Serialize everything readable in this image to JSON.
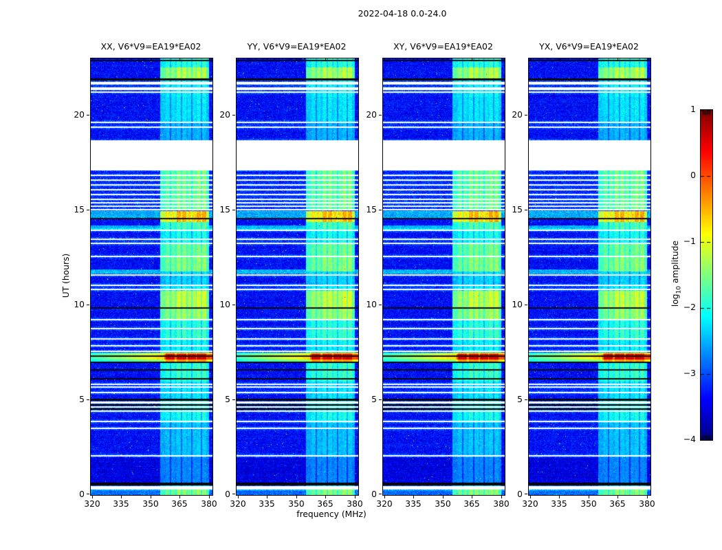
{
  "title": "2022-04-18 0.0-24.0",
  "panels": [
    {
      "id": "XX",
      "title": "XX, V6*V9=EA19*EA02"
    },
    {
      "id": "YY",
      "title": "YY, V6*V9=EA19*EA02"
    },
    {
      "id": "XY",
      "title": "XY, V6*V9=EA19*EA02"
    },
    {
      "id": "YX",
      "title": "YX, V6*V9=EA19*EA02"
    }
  ],
  "axes": {
    "x_label": "frequency (MHz)",
    "y_label": "UT (hours)",
    "x_tick_labels": [
      "320",
      "335",
      "350",
      "365",
      "380"
    ],
    "x_tick_values": [
      320,
      335,
      350,
      365,
      380
    ],
    "y_tick_labels": [
      "0",
      "5",
      "10",
      "15",
      "20"
    ],
    "y_tick_values": [
      0,
      5,
      10,
      15,
      20
    ]
  },
  "colorbar": {
    "label_pre": "log",
    "label_sub": "10",
    "label_post": " amplitude",
    "tick_labels": [
      "1",
      "0",
      "−1",
      "−2",
      "−3",
      "−4"
    ],
    "tick_values": [
      1,
      0,
      -1,
      -2,
      -3,
      -4
    ],
    "min": -4,
    "max": 1,
    "colormap": "jet"
  },
  "chart_data": {
    "type": "heatmap",
    "title": "2022-04-18 0.0-24.0",
    "subplot_titles": [
      "XX, V6*V9=EA19*EA02",
      "YY, V6*V9=EA19*EA02",
      "XY, V6*V9=EA19*EA02",
      "YX, V6*V9=EA19*EA02"
    ],
    "xlabel": "frequency (MHz)",
    "ylabel": "UT (hours)",
    "x_range_mhz": [
      319.0,
      381.4
    ],
    "y_range_hours": [
      0,
      23
    ],
    "value_range_log10": [
      -4,
      1
    ],
    "background_level": -3.35,
    "noise_amplitude": 0.7,
    "rfi_bands_mhz": [
      [
        357.4,
        361.9
      ],
      [
        363.0,
        367.8
      ],
      [
        368.6,
        372.8
      ],
      [
        373.2,
        378.0
      ]
    ],
    "rfi_band_gain": [
      0.88,
      1.0,
      0.93,
      1.02
    ],
    "rfi_halo_mhz": [
      354.5,
      379.6
    ],
    "notch_freqs_mhz": [
      359.7,
      365.5,
      370.6,
      375.5
    ],
    "burst_band": {
      "hours": [
        7.03,
        7.5
      ],
      "peak_level": 0.7,
      "note": "broadband burst: green-yellow at low freq, dark red blocks in RFI bands"
    },
    "white_gaps_hours": [
      [
        21.63,
        21.77
      ],
      [
        21.34,
        21.48
      ],
      [
        21.2,
        21.27
      ],
      [
        19.6,
        19.67
      ],
      [
        19.34,
        19.42
      ],
      [
        17.1,
        18.69
      ],
      [
        16.81,
        16.88
      ],
      [
        16.55,
        16.63
      ],
      [
        16.3,
        16.37
      ],
      [
        16.05,
        16.12
      ],
      [
        15.79,
        15.87
      ],
      [
        15.54,
        15.61
      ],
      [
        15.36,
        15.43
      ],
      [
        15.18,
        15.25
      ],
      [
        15.0,
        15.07
      ],
      [
        13.91,
        13.98
      ],
      [
        13.44,
        13.51
      ],
      [
        13.22,
        13.3
      ],
      [
        12.53,
        12.61
      ],
      [
        11.56,
        11.63
      ],
      [
        11.01,
        11.09
      ],
      [
        10.8,
        10.87
      ],
      [
        9.2,
        9.28
      ],
      [
        8.73,
        8.8
      ],
      [
        8.19,
        8.26
      ],
      [
        7.82,
        7.9
      ],
      [
        7.53,
        7.61
      ],
      [
        5.8,
        5.87
      ],
      [
        5.65,
        5.72
      ],
      [
        5.36,
        5.43
      ],
      [
        4.82,
        4.93
      ],
      [
        4.6,
        4.67
      ],
      [
        4.38,
        4.46
      ],
      [
        3.84,
        3.91
      ],
      [
        3.48,
        3.55
      ],
      [
        2.03,
        2.1
      ],
      [
        0.29,
        0.47
      ]
    ],
    "black_lines_hours": [
      [
        22.87,
        22.93
      ],
      [
        21.84,
        21.95
      ],
      [
        14.53,
        14.6
      ],
      [
        9.82,
        9.89
      ],
      [
        7.28,
        7.35
      ],
      [
        6.96,
        7.03
      ],
      [
        6.56,
        6.63
      ],
      [
        6.09,
        6.16
      ],
      [
        4.96,
        5.07
      ],
      [
        4.71,
        4.78
      ],
      [
        4.49,
        4.56
      ],
      [
        0.51,
        0.65
      ]
    ],
    "rfi_strength_hours": [
      [
        22.53,
        23.0,
        0.6
      ],
      [
        21.95,
        22.53,
        0.95
      ],
      [
        20.97,
        21.95,
        0.5
      ],
      [
        19.67,
        20.97,
        0.45
      ],
      [
        18.69,
        19.67,
        0.3
      ],
      [
        15.0,
        17.1,
        0.8
      ],
      [
        14.38,
        14.96,
        1.3
      ],
      [
        13.95,
        14.38,
        0.7
      ],
      [
        13.22,
        13.95,
        0.55
      ],
      [
        12.5,
        13.22,
        0.8
      ],
      [
        11.77,
        12.5,
        0.85
      ],
      [
        11.05,
        11.77,
        0.4
      ],
      [
        10.76,
        11.05,
        0.5
      ],
      [
        9.89,
        10.76,
        1.0
      ],
      [
        9.24,
        9.89,
        0.9
      ],
      [
        8.69,
        9.24,
        0.6
      ],
      [
        8.15,
        8.69,
        0.65
      ],
      [
        7.5,
        8.15,
        0.5
      ],
      [
        5.98,
        7.03,
        0.65
      ],
      [
        5.07,
        5.98,
        0.45
      ],
      [
        3.8,
        5.07,
        0.55
      ],
      [
        1.99,
        3.8,
        0.35
      ],
      [
        0.65,
        1.99,
        0.18
      ],
      [
        0.29,
        0.65,
        0.35
      ],
      [
        0.0,
        0.29,
        0.85
      ]
    ],
    "elevated_rows_hours": [
      [
        14.6,
        14.96,
        -2.55
      ],
      [
        13.98,
        14.2,
        -2.5
      ],
      [
        11.66,
        11.88,
        -2.5
      ],
      [
        0.65,
        1.99,
        -3.5
      ],
      [
        0.0,
        0.29,
        -2.85
      ]
    ]
  }
}
